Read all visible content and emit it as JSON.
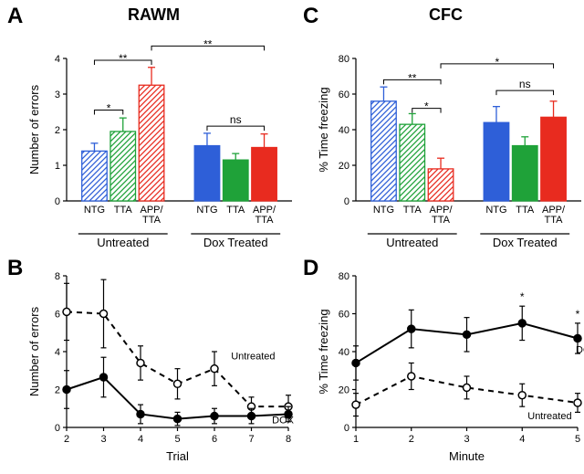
{
  "titles": {
    "rawm": "RAWM",
    "cfc": "CFC"
  },
  "panel_labels": {
    "a": "A",
    "b": "B",
    "c": "C",
    "d": "D"
  },
  "colors": {
    "ntg_stroke": "#2e5fd8",
    "ntg_fill_untreated": "#c8d4f4",
    "ntg_fill_dox": "#2e5fd8",
    "tta_stroke": "#1fa239",
    "tta_fill_untreated": "#bfe8c6",
    "tta_fill_dox": "#1fa239",
    "app_stroke": "#e82b1f",
    "app_fill_untreated": "#fcd2cf",
    "app_fill_dox": "#e82b1f",
    "black": "#000000",
    "bg": "#ffffff"
  },
  "panelA": {
    "type": "bar",
    "ylabel": "Number of errors",
    "ylim": [
      0,
      4
    ],
    "ytick_step": 1,
    "groups": [
      "Untreated",
      "Dox Treated"
    ],
    "cats": [
      "NTG",
      "TTA",
      "APP/\nTTA"
    ],
    "bars": [
      {
        "group": 0,
        "cat": 0,
        "value": 1.4,
        "err": 0.22,
        "stroke": "#2e5fd8",
        "hatch": true,
        "hfill": "#c8d4f4"
      },
      {
        "group": 0,
        "cat": 1,
        "value": 1.95,
        "err": 0.38,
        "stroke": "#1fa239",
        "hatch": true,
        "hfill": "#bfe8c6"
      },
      {
        "group": 0,
        "cat": 2,
        "value": 3.25,
        "err": 0.5,
        "stroke": "#e82b1f",
        "hatch": true,
        "hfill": "#fcd2cf"
      },
      {
        "group": 1,
        "cat": 0,
        "value": 1.55,
        "err": 0.35,
        "stroke": "#2e5fd8",
        "fill": "#2e5fd8"
      },
      {
        "group": 1,
        "cat": 1,
        "value": 1.15,
        "err": 0.18,
        "stroke": "#1fa239",
        "fill": "#1fa239"
      },
      {
        "group": 1,
        "cat": 2,
        "value": 1.5,
        "err": 0.38,
        "stroke": "#e82b1f",
        "fill": "#e82b1f"
      }
    ],
    "sig": [
      {
        "from": 0,
        "to": 1,
        "y": 2.55,
        "label": "*"
      },
      {
        "from": 0,
        "to": 2,
        "y": 3.95,
        "label": "**"
      },
      {
        "from": 2,
        "to": 5,
        "y": 4.35,
        "label": "**",
        "long": true
      },
      {
        "from": 3,
        "to": 5,
        "y": 2.1,
        "label": "ns"
      }
    ]
  },
  "panelC": {
    "type": "bar",
    "ylabel": "% Time freezing",
    "ylim": [
      0,
      80
    ],
    "ytick_step": 20,
    "groups": [
      "Untreated",
      "Dox Treated"
    ],
    "cats": [
      "NTG",
      "TTA",
      "APP/\nTTA"
    ],
    "bars": [
      {
        "group": 0,
        "cat": 0,
        "value": 56,
        "err": 8,
        "stroke": "#2e5fd8",
        "hatch": true,
        "hfill": "#c8d4f4"
      },
      {
        "group": 0,
        "cat": 1,
        "value": 43,
        "err": 6,
        "stroke": "#1fa239",
        "hatch": true,
        "hfill": "#bfe8c6"
      },
      {
        "group": 0,
        "cat": 2,
        "value": 18,
        "err": 6,
        "stroke": "#e82b1f",
        "hatch": true,
        "hfill": "#fcd2cf"
      },
      {
        "group": 1,
        "cat": 0,
        "value": 44,
        "err": 9,
        "stroke": "#2e5fd8",
        "fill": "#2e5fd8"
      },
      {
        "group": 1,
        "cat": 1,
        "value": 31,
        "err": 5,
        "stroke": "#1fa239",
        "fill": "#1fa239"
      },
      {
        "group": 1,
        "cat": 2,
        "value": 47,
        "err": 9,
        "stroke": "#e82b1f",
        "fill": "#e82b1f"
      }
    ],
    "sig": [
      {
        "from": 1,
        "to": 2,
        "y": 52,
        "label": "*"
      },
      {
        "from": 0,
        "to": 2,
        "y": 68,
        "label": "**"
      },
      {
        "from": 2,
        "to": 5,
        "y": 77,
        "label": "*",
        "long": true
      },
      {
        "from": 3,
        "to": 5,
        "y": 62,
        "label": "ns"
      }
    ]
  },
  "panelB": {
    "type": "line",
    "ylabel": "Number of errors",
    "xlabel": "Trial",
    "ylim": [
      0,
      8
    ],
    "ytick_step": 2,
    "xvals": [
      2,
      3,
      4,
      5,
      6,
      7,
      8
    ],
    "series": [
      {
        "name": "Untreated",
        "dash": true,
        "open": true,
        "y": [
          6.1,
          6.0,
          3.4,
          2.3,
          3.1,
          1.1,
          1.1
        ],
        "err": [
          1.5,
          1.8,
          0.9,
          0.8,
          0.9,
          0.5,
          0.6
        ]
      },
      {
        "name": "DOX",
        "dash": false,
        "open": false,
        "y": [
          2.0,
          2.65,
          0.7,
          0.45,
          0.6,
          0.6,
          0.7
        ],
        "err": [
          1.0,
          1.05,
          0.5,
          0.35,
          0.4,
          0.4,
          0.4
        ]
      }
    ],
    "labels": {
      "Untreated": "Untreated",
      "DOX": "DOX"
    }
  },
  "panelD": {
    "type": "line",
    "ylabel": "% Time freezing",
    "xlabel": "Minute",
    "ylim": [
      0,
      80
    ],
    "ytick_step": 20,
    "xvals": [
      1,
      2,
      3,
      4,
      5
    ],
    "series": [
      {
        "name": "DOX",
        "dash": false,
        "open": false,
        "y": [
          34,
          52,
          49,
          55,
          47
        ],
        "err": [
          9,
          10,
          9,
          9,
          8
        ]
      },
      {
        "name": "Untreated",
        "dash": true,
        "open": true,
        "y": [
          12,
          27,
          21,
          17,
          13
        ],
        "err": [
          6,
          7,
          6,
          6,
          5
        ]
      }
    ],
    "sig_x": [
      4,
      5
    ],
    "labels": {
      "Untreated": "Untreated",
      "DOX": "DOX"
    }
  }
}
